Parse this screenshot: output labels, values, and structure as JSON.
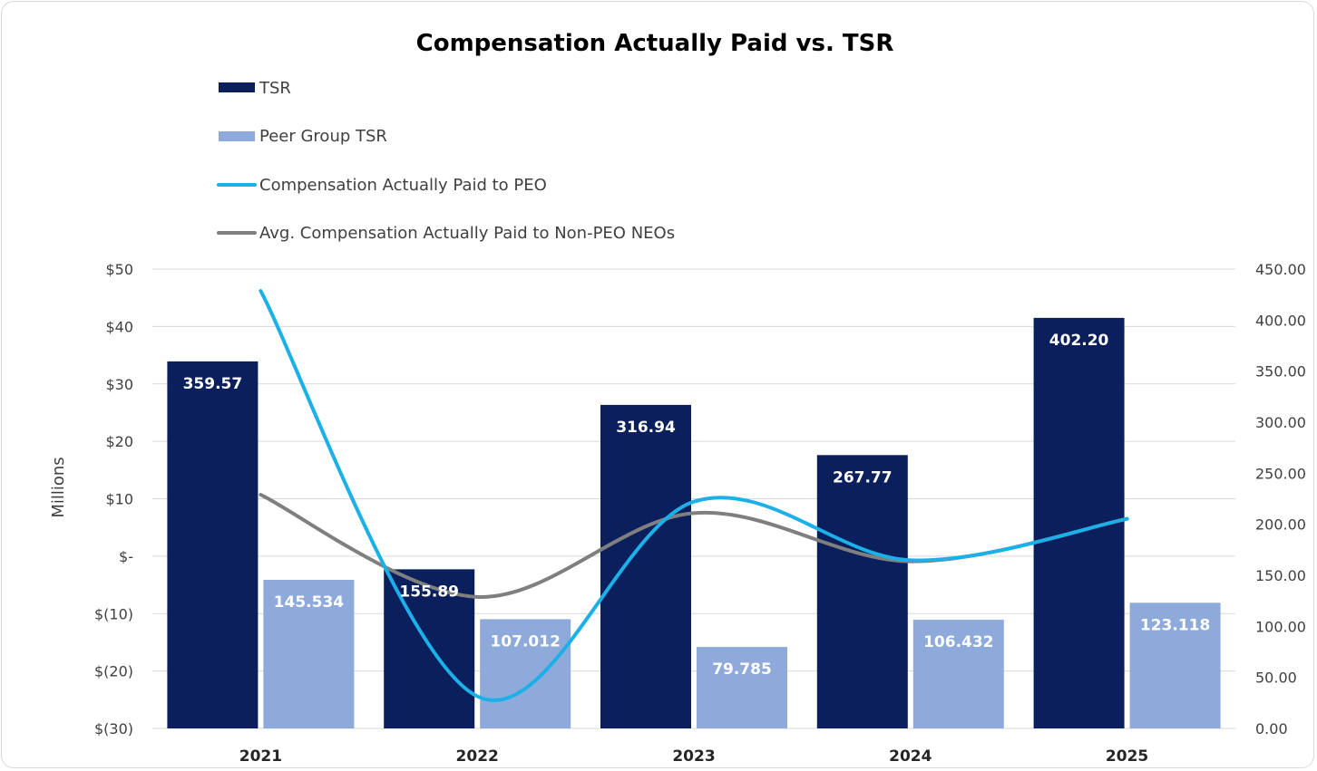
{
  "chart_data": {
    "type": "bar",
    "title": "Compensation Actually Paid vs. TSR",
    "categories": [
      "2021",
      "2022",
      "2023",
      "2024",
      "2025"
    ],
    "series": [
      {
        "name": "TSR",
        "kind": "bar",
        "axis": "right",
        "color": "#0a1f5c",
        "values": [
          359.57,
          155.89,
          316.94,
          267.77,
          402.2
        ],
        "labels": [
          "359.57",
          "155.89",
          "316.94",
          "267.77",
          "402.20"
        ]
      },
      {
        "name": "Peer Group TSR",
        "kind": "bar",
        "axis": "right",
        "color": "#8eaadb",
        "values": [
          145.534,
          107.012,
          79.785,
          106.432,
          123.118
        ],
        "labels": [
          "145.534",
          "107.012",
          "79.785",
          "106.432",
          "123.118"
        ]
      },
      {
        "name": "Compensation Actually Paid to PEO",
        "kind": "line",
        "axis": "left",
        "color": "#1bb0e8",
        "values": [
          46.2,
          -24.4,
          9.5,
          -0.7,
          6.5
        ]
      },
      {
        "name": "Avg. Compensation Actually Paid to Non-PEO NEOs",
        "kind": "line",
        "axis": "left",
        "color": "#7f7f7f",
        "values": [
          10.7,
          -7.1,
          7.5,
          -0.9,
          6.5
        ]
      }
    ],
    "y_left": {
      "label": "Millions",
      "range": [
        -30,
        50
      ],
      "ticks": [
        "$(30)",
        "$(20)",
        "$(10)",
        "$-",
        "$10",
        "$20",
        "$30",
        "$40",
        "$50"
      ]
    },
    "y_right": {
      "range": [
        0,
        450
      ],
      "ticks": [
        "0.00",
        "50.00",
        "100.00",
        "150.00",
        "200.00",
        "250.00",
        "300.00",
        "350.00",
        "400.00",
        "450.00"
      ]
    },
    "grid": true,
    "legend_position": "top-left"
  }
}
